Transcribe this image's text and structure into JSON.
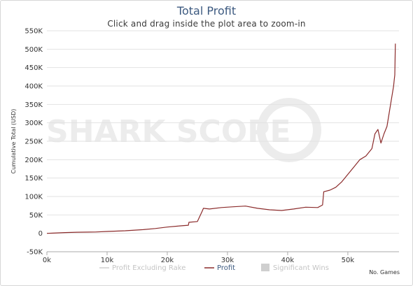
{
  "chart_data": {
    "type": "line",
    "title": "Total Profit",
    "subtitle": "Click and drag inside the plot area to zoom-in",
    "xlabel": "No. Games",
    "ylabel": "Cumulative Total (USD)",
    "xlim": [
      0,
      58500
    ],
    "ylim": [
      -50000,
      550000
    ],
    "x_ticks": [
      0,
      10000,
      20000,
      30000,
      40000,
      50000
    ],
    "x_tick_labels": [
      "0k",
      "10k",
      "20k",
      "30k",
      "40k",
      "50k"
    ],
    "y_ticks": [
      -50000,
      0,
      50000,
      100000,
      150000,
      200000,
      250000,
      300000,
      350000,
      400000,
      450000,
      500000,
      550000
    ],
    "y_tick_labels": [
      "-50K",
      "0",
      "50K",
      "100K",
      "150K",
      "200K",
      "250K",
      "300K",
      "350K",
      "400K",
      "450K",
      "500K",
      "550K"
    ],
    "grid": "horizontal",
    "legend": {
      "placement": "bottom-center",
      "items": [
        {
          "label": "Profit Excluding Rake",
          "style": "line",
          "color": "#cfcfcf",
          "active": false
        },
        {
          "label": "Profit",
          "style": "line",
          "color": "#8b2b2b",
          "active": true
        },
        {
          "label": "Significant Wins",
          "style": "box",
          "color": "#cfcfcf",
          "active": false
        }
      ]
    },
    "watermark": "SHARK SCOPE",
    "series": [
      {
        "name": "Profit",
        "color": "#8b2b2b",
        "x": [
          0,
          1000,
          3000,
          5000,
          8000,
          10000,
          13000,
          16000,
          18000,
          20000,
          22000,
          23500,
          23600,
          25000,
          25800,
          26000,
          27000,
          29000,
          31000,
          33000,
          35000,
          37000,
          39000,
          41000,
          43000,
          45000,
          45800,
          46000,
          47000,
          48000,
          49000,
          50000,
          51000,
          52000,
          53000,
          54000,
          54500,
          55000,
          55500,
          56000,
          56500,
          56800,
          57000,
          57300,
          57600,
          57700,
          57800,
          57900
        ],
        "values": [
          0,
          500,
          2000,
          3000,
          3500,
          5000,
          7000,
          10000,
          13000,
          17000,
          20000,
          22000,
          30000,
          32000,
          60000,
          68000,
          66000,
          70000,
          72000,
          74000,
          68000,
          64000,
          62000,
          66000,
          71000,
          70000,
          77000,
          113000,
          117000,
          125000,
          140000,
          160000,
          180000,
          200000,
          210000,
          230000,
          270000,
          282000,
          245000,
          270000,
          290000,
          320000,
          340000,
          370000,
          400000,
          415000,
          430000,
          515000
        ]
      }
    ]
  }
}
